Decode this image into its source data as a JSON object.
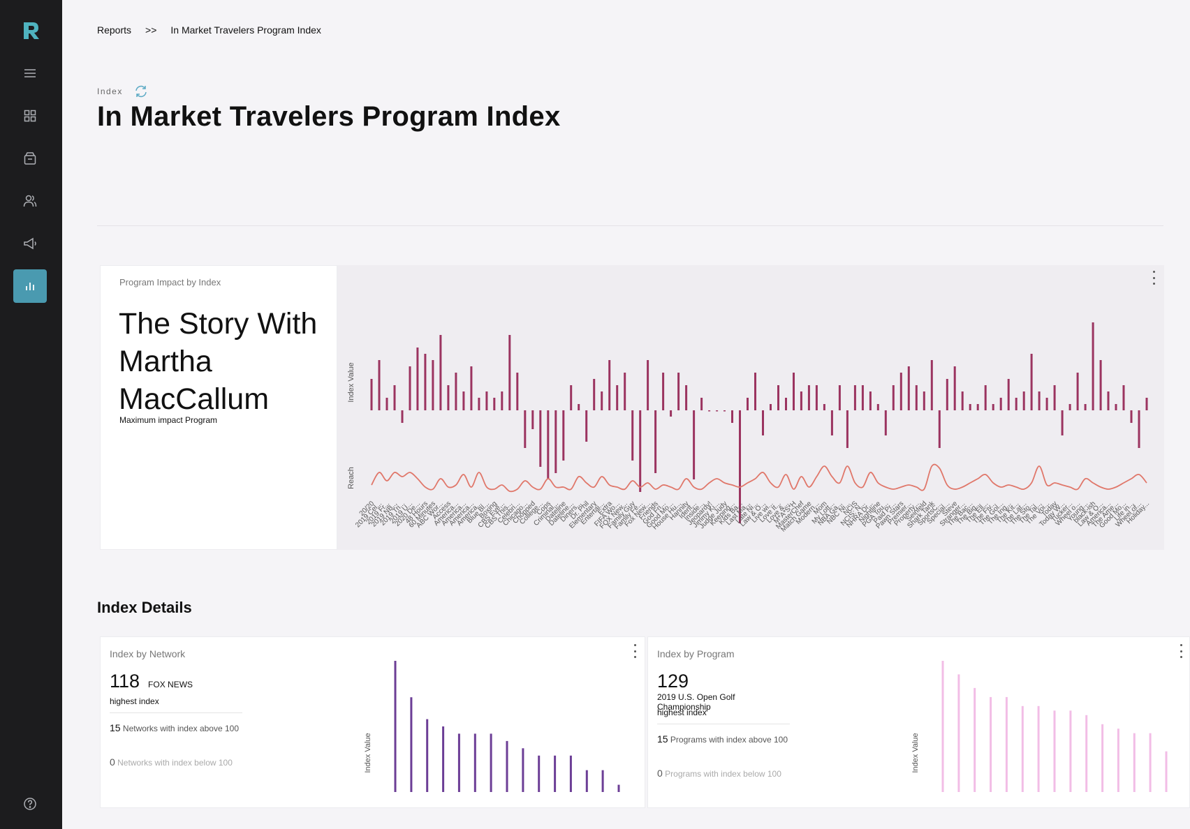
{
  "breadcrumb": {
    "root": "Reports",
    "separator": ">>",
    "current": "In Market Travelers Program Index"
  },
  "header": {
    "kicker": "Index",
    "title": "In Market Travelers Program Index"
  },
  "impact_card": {
    "label": "Program Impact by Index",
    "program": "The Story With Martha MacCallum",
    "sublabel": "Maximum impact Program"
  },
  "section_title": "Index Details",
  "network_card": {
    "label": "Index by Network",
    "top_value": "118",
    "top_name": "FOX NEWS",
    "top_caption": "highest index",
    "above_count": "15",
    "above_text": "Networks with index above 100",
    "below_count": "0",
    "below_text": "Networks with index below 100"
  },
  "program_card": {
    "label": "Index by Program",
    "top_value": "129",
    "top_name": "2019 U.S. Open Golf Championship",
    "top_caption": "highest index",
    "above_count": "15",
    "above_text": "Programs with index above 100",
    "below_count": "0",
    "below_text": "Programs with index below 100"
  },
  "colors": {
    "bar": "#9b3460",
    "reach": "#e0776a",
    "network": "#6c3e96",
    "program": "#f2bde6",
    "accent": "#4a9ab0"
  },
  "icons": [
    "logo-icon",
    "menu-icon",
    "dashboard-icon",
    "inbox-icon",
    "users-icon",
    "megaphone-icon",
    "bar-chart-icon",
    "help-icon",
    "refresh-icon",
    "more-vert-icon"
  ],
  "chart_data": [
    {
      "type": "bar",
      "ylabel": "Index Value",
      "y2label": "Reach",
      "categories": [
        "20/20",
        "2019 Cel...",
        "2019 Fr...",
        "2019 NB...",
        "2019 Tri...",
        "2019 U...",
        "2020 De...",
        "48 Hours",
        "60 Minutes",
        "ABC Wor...",
        "Access",
        "America...",
        "America...",
        "America...",
        "America...",
        "Blue Bl...",
        "Boxing",
        "CBS Eve...",
        "CBS This...",
        "Celebri...",
        "Chicago...",
        "Chopped",
        "College...",
        "Cops",
        "Criminal...",
        "Dateline",
        "Dateline...",
        "Diners...",
        "Dr. Phil",
        "Elementary",
        "Entertai...",
        "Extra",
        "FIFA Wo...",
        "FOX New...",
        "Family Guy",
        "Family Fe...",
        "Fox New...",
        "Friends",
        "God Fri...",
        "Good Mo...",
        "House Hu...",
        "Hannity",
        "Ident...",
        "Inside...",
        "Jeopardy!",
        "Jimmy Ki...",
        "Judge Judy",
        "Keeping...",
        "Kids Ba...",
        "Last Ma...",
        "Late Ni...",
        "Law & O...",
        "Live wi...",
        "Love It...",
        "Love &...",
        "M*A*S*H",
        "MasterChef",
        "Match Game",
        "Modern...",
        "Mom",
        "My Lott...",
        "NBA Ga...",
        "NBC Ni...",
        "NCIS",
        "NCIS: N...",
        "NHRA Dr...",
        "Nightline",
        "PGA Tou...",
        "Paid Pr...",
        "Pawn Stars",
        "Premier...",
        "Property...",
        "Seinfeld",
        "Shark Tank",
        "SportsC...",
        "Special...",
        "Steve",
        "Stranger...",
        "The Bac...",
        "The Big...",
        "The Ell...",
        "The Fiv...",
        "The Gol...",
        "The Ing...",
        "The Kit...",
        "The Lat...",
        "The Sto...",
        "The Tal...",
        "The Voi...",
        "Today",
        "Today W...",
        "Tucker...",
        "Wheel o...",
        "Young...",
        "black-ish",
        "Law & O...",
        "America...",
        "The Ame...",
        "Good Mo...",
        "Life in...",
        "Wheel of...",
        "Holiday..."
      ],
      "values": [
        105,
        108,
        102,
        104,
        98,
        107,
        110,
        109,
        108,
        112,
        104,
        106,
        103,
        107,
        102,
        103,
        102,
        103,
        112,
        106,
        94,
        97,
        91,
        89,
        90,
        92,
        104,
        101,
        95,
        105,
        103,
        108,
        104,
        106,
        92,
        87,
        108,
        90,
        106,
        99,
        106,
        104,
        89,
        102,
        100,
        100,
        100,
        98,
        82,
        102,
        106,
        96,
        101,
        104,
        102,
        106,
        103,
        104,
        104,
        101,
        96,
        104,
        94,
        104,
        104,
        103,
        101,
        96,
        104,
        106,
        107,
        104,
        103,
        108,
        94,
        105,
        107,
        103,
        101,
        101,
        104,
        101,
        102,
        105,
        102,
        103,
        109,
        103,
        102,
        104,
        96,
        101,
        106,
        101,
        114,
        108,
        103,
        101,
        104,
        98,
        94,
        102
      ],
      "reach": [
        0.25,
        0.55,
        0.35,
        0.55,
        0.45,
        0.55,
        0.4,
        0.2,
        0.15,
        0.4,
        0.2,
        0.25,
        0.5,
        0.2,
        0.55,
        0.2,
        0.15,
        0.25,
        0.1,
        0.15,
        0.35,
        0.2,
        0.15,
        0.4,
        0.2,
        0.2,
        0.15,
        0.45,
        0.3,
        0.2,
        0.45,
        0.25,
        0.2,
        0.15,
        0.35,
        0.2,
        0.3,
        0.15,
        0.25,
        0.2,
        0.15,
        0.4,
        0.2,
        0.15,
        0.3,
        0.4,
        0.3,
        0.25,
        0.2,
        0.3,
        0.4,
        0.55,
        0.3,
        0.2,
        0.5,
        0.15,
        0.45,
        0.2,
        0.45,
        0.7,
        0.45,
        0.3,
        0.7,
        0.3,
        0.2,
        0.55,
        0.3,
        0.2,
        0.15,
        0.2,
        0.25,
        0.2,
        0.15,
        0.7,
        0.65,
        0.25,
        0.15,
        0.2,
        0.3,
        0.4,
        0.5,
        0.3,
        0.2,
        0.25,
        0.2,
        0.15,
        0.3,
        0.7,
        0.25,
        0.3,
        0.25,
        0.2,
        0.15,
        0.4,
        0.3,
        0.2,
        0.15,
        0.2,
        0.3,
        0.4,
        0.5,
        0.3
      ]
    },
    {
      "type": "bar",
      "title": "Index by Network",
      "ylabel": "Index Value",
      "values": [
        118,
        113,
        110,
        109,
        108,
        108,
        108,
        107,
        106,
        105,
        105,
        105,
        103,
        103,
        101
      ]
    },
    {
      "type": "bar",
      "title": "Index by Program",
      "ylabel": "Index Value",
      "values": [
        129,
        126,
        123,
        121,
        121,
        119,
        119,
        118,
        118,
        117,
        115,
        114,
        113,
        113,
        109
      ]
    }
  ]
}
